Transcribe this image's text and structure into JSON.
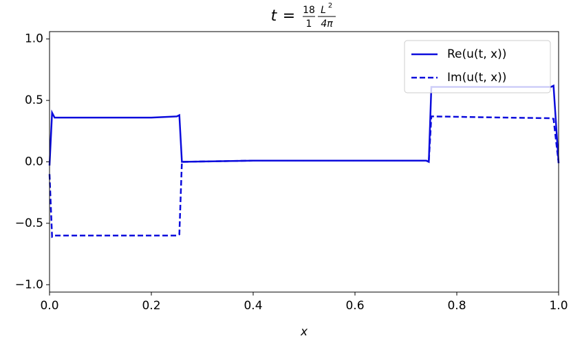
{
  "chart_data": {
    "type": "line",
    "title": {
      "lhs": "t",
      "eq": "=",
      "frac1": [
        "18",
        "1"
      ],
      "frac2": [
        "L",
        "2",
        "4π"
      ]
    },
    "x_label": "x",
    "x": [
      0,
      0.005,
      0.01,
      0.1,
      0.2,
      0.25,
      0.255,
      0.26,
      0.4,
      0.6,
      0.74,
      0.745,
      0.75,
      0.9,
      0.985,
      0.99,
      1.0
    ],
    "series": [
      {
        "name": "Re(u(t, x))",
        "color": "#0b0bdc",
        "dash": false,
        "values": [
          -0.03,
          0.4,
          0.36,
          0.36,
          0.36,
          0.37,
          0.38,
          0.0,
          0.01,
          0.01,
          0.01,
          0.0,
          0.61,
          0.61,
          0.61,
          0.62,
          -0.01
        ]
      },
      {
        "name": "Im(u(t, x))",
        "color": "#0b0bdc",
        "dash": true,
        "values": [
          -0.1,
          -0.61,
          -0.6,
          -0.6,
          -0.6,
          -0.6,
          -0.59,
          0.0,
          0.01,
          0.01,
          0.01,
          0.0,
          0.37,
          0.36,
          0.355,
          0.35,
          -0.01
        ]
      }
    ],
    "xlim": [
      0,
      1
    ],
    "ylim": [
      -1.06,
      1.06
    ],
    "xticks": [
      {
        "value": 0,
        "label": "0.0"
      },
      0.2,
      0.4,
      0.6,
      0.8,
      {
        "value": 1,
        "label": "1.0"
      }
    ],
    "yticks": [
      {
        "value": -1,
        "label": "−1.0"
      },
      {
        "value": -0.5,
        "label": "−0.5"
      },
      {
        "value": 0,
        "label": "0.0"
      },
      {
        "value": 0.5,
        "label": "0.5"
      },
      {
        "value": 1,
        "label": "1.0"
      }
    ],
    "legend": "upper right"
  }
}
